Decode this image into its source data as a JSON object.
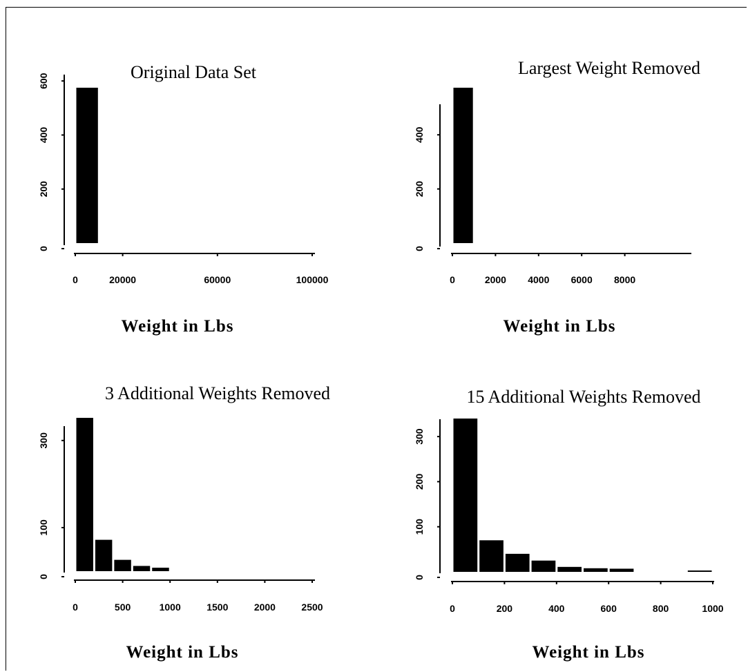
{
  "colors": {
    "bar": "#000000",
    "axis": "#000000",
    "background": "#ffffff"
  },
  "chart_data": [
    {
      "type": "bar",
      "title": "Original Data Set",
      "xlabel": "Weight in Lbs",
      "ylabel": "",
      "xlim": [
        0,
        100000
      ],
      "ylim": [
        0,
        600
      ],
      "x_ticks": [
        0,
        20000,
        60000,
        100000
      ],
      "x_tick_labels": [
        "0",
        "20000",
        "60000",
        "100000"
      ],
      "y_ticks": [
        0,
        200,
        400,
        600
      ],
      "y_tick_labels": [
        "0",
        "200",
        "400",
        "600"
      ],
      "bins": [
        {
          "start": 0,
          "end": 10000,
          "count": 575
        }
      ]
    },
    {
      "type": "bar",
      "title": "Largest Weight Removed",
      "xlabel": "Weight in Lbs",
      "ylabel": "",
      "xlim": [
        0,
        10000
      ],
      "ylim": [
        0,
        575
      ],
      "x_ticks": [
        0,
        2000,
        4000,
        6000,
        8000
      ],
      "x_tick_labels": [
        "0",
        "2000",
        "4000",
        "6000",
        "8000"
      ],
      "y_ticks": [
        0,
        200,
        400
      ],
      "y_tick_labels": [
        "0",
        "200",
        "400"
      ],
      "bins": [
        {
          "start": 0,
          "end": 1000,
          "count": 574
        }
      ]
    },
    {
      "type": "bar",
      "title": "3 Additional Weights Removed",
      "xlabel": "Weight in Lbs",
      "ylabel": "",
      "xlim": [
        0,
        2500
      ],
      "ylim": [
        0,
        345
      ],
      "x_ticks": [
        0,
        500,
        1000,
        1500,
        2000,
        2500
      ],
      "x_tick_labels": [
        "0",
        "500",
        "1000",
        "1500",
        "2000",
        "2500"
      ],
      "y_ticks": [
        0,
        100,
        300
      ],
      "y_tick_labels": [
        "0",
        "100",
        "300"
      ],
      "bins": [
        {
          "start": 0,
          "end": 200,
          "count": 352
        },
        {
          "start": 200,
          "end": 400,
          "count": 72
        },
        {
          "start": 400,
          "end": 600,
          "count": 26
        },
        {
          "start": 600,
          "end": 800,
          "count": 12
        },
        {
          "start": 800,
          "end": 1000,
          "count": 8
        }
      ]
    },
    {
      "type": "bar",
      "title": "15 Additional Weights Removed",
      "xlabel": "Weight in Lbs",
      "ylabel": "",
      "xlim": [
        0,
        1000
      ],
      "ylim": [
        0,
        345
      ],
      "x_ticks": [
        0,
        200,
        400,
        600,
        800,
        1000
      ],
      "x_tick_labels": [
        "0",
        "200",
        "400",
        "600",
        "800",
        "1000"
      ],
      "y_ticks": [
        0,
        100,
        200,
        300
      ],
      "y_tick_labels": [
        "0",
        "100",
        "200",
        "300"
      ],
      "bins": [
        {
          "start": 0,
          "end": 100,
          "count": 340
        },
        {
          "start": 100,
          "end": 200,
          "count": 70
        },
        {
          "start": 200,
          "end": 300,
          "count": 40
        },
        {
          "start": 300,
          "end": 400,
          "count": 25
        },
        {
          "start": 400,
          "end": 500,
          "count": 11
        },
        {
          "start": 500,
          "end": 600,
          "count": 8
        },
        {
          "start": 600,
          "end": 700,
          "count": 7
        },
        {
          "start": 900,
          "end": 1000,
          "count": 3
        }
      ]
    }
  ]
}
